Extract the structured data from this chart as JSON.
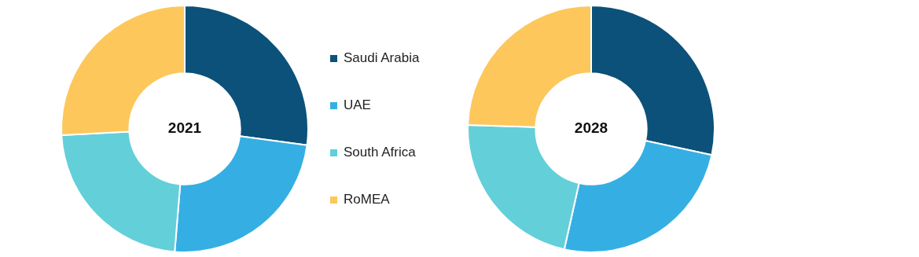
{
  "chart_data": [
    {
      "type": "donut",
      "title": "2021",
      "categories": [
        "Saudi Arabia",
        "UAE",
        "South Africa",
        "RoMEA"
      ],
      "values": [
        27.1,
        24.2,
        22.9,
        25.8
      ],
      "colors": [
        "#0b5179",
        "#35afe3",
        "#63cfd9",
        "#fdc75c"
      ],
      "legend": "right"
    },
    {
      "type": "donut",
      "title": "2028",
      "categories": [
        null,
        null,
        null,
        null
      ],
      "values": [
        28.4,
        25.1,
        22.0,
        24.5
      ],
      "colors": [
        "#0b5179",
        "#35afe3",
        "#63cfd9",
        "#fdc75c"
      ]
    }
  ]
}
